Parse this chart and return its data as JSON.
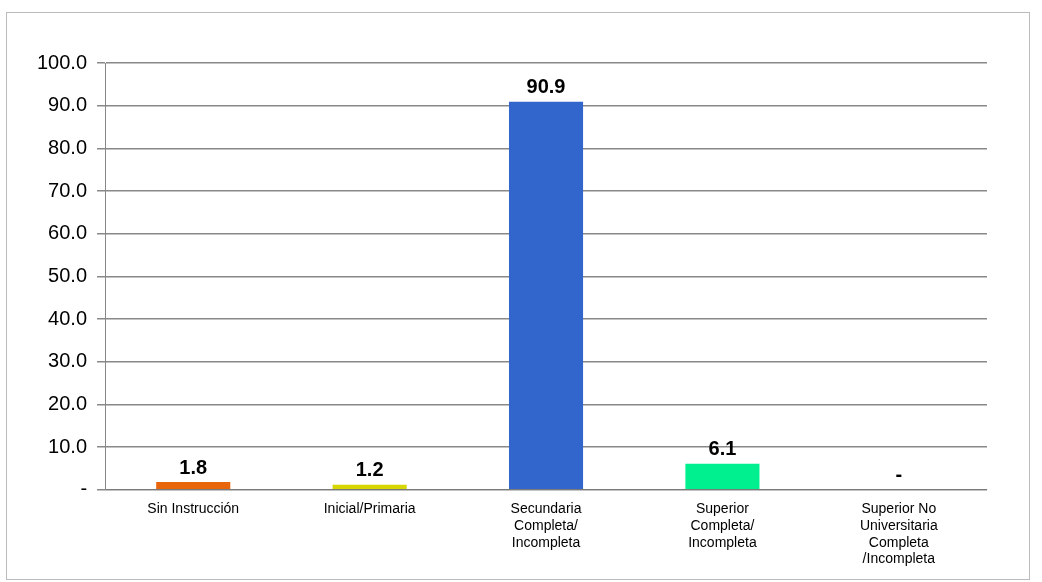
{
  "chart_data": {
    "type": "bar",
    "categories": [
      "Sin Instrucción",
      "Inicial/Primaria",
      "Secundaria Completa/ Incompleta",
      "Superior Completa/ Incompleta",
      "Superior No Universitaria Completa /Incompleta"
    ],
    "values": [
      1.8,
      1.2,
      90.9,
      6.1,
      0
    ],
    "colors": [
      "#e8650a",
      "#d6d600",
      "#3366cc",
      "#00f090",
      "#990050"
    ],
    "value_labels": [
      "1.8",
      "1.2",
      "90.9",
      "6.1",
      "-"
    ],
    "ylim": [
      0,
      100
    ],
    "yticks": [
      {
        "value": 0,
        "label": "-"
      },
      {
        "value": 10,
        "label": "10.0"
      },
      {
        "value": 20,
        "label": "20.0"
      },
      {
        "value": 30,
        "label": "30.0"
      },
      {
        "value": 40,
        "label": "40.0"
      },
      {
        "value": 50,
        "label": "50.0"
      },
      {
        "value": 60,
        "label": "60.0"
      },
      {
        "value": 70,
        "label": "70.0"
      },
      {
        "value": 80,
        "label": "80.0"
      },
      {
        "value": 90,
        "label": "90.0"
      },
      {
        "value": 100,
        "label": "100.0"
      }
    ],
    "grid": "y",
    "legend": false
  }
}
